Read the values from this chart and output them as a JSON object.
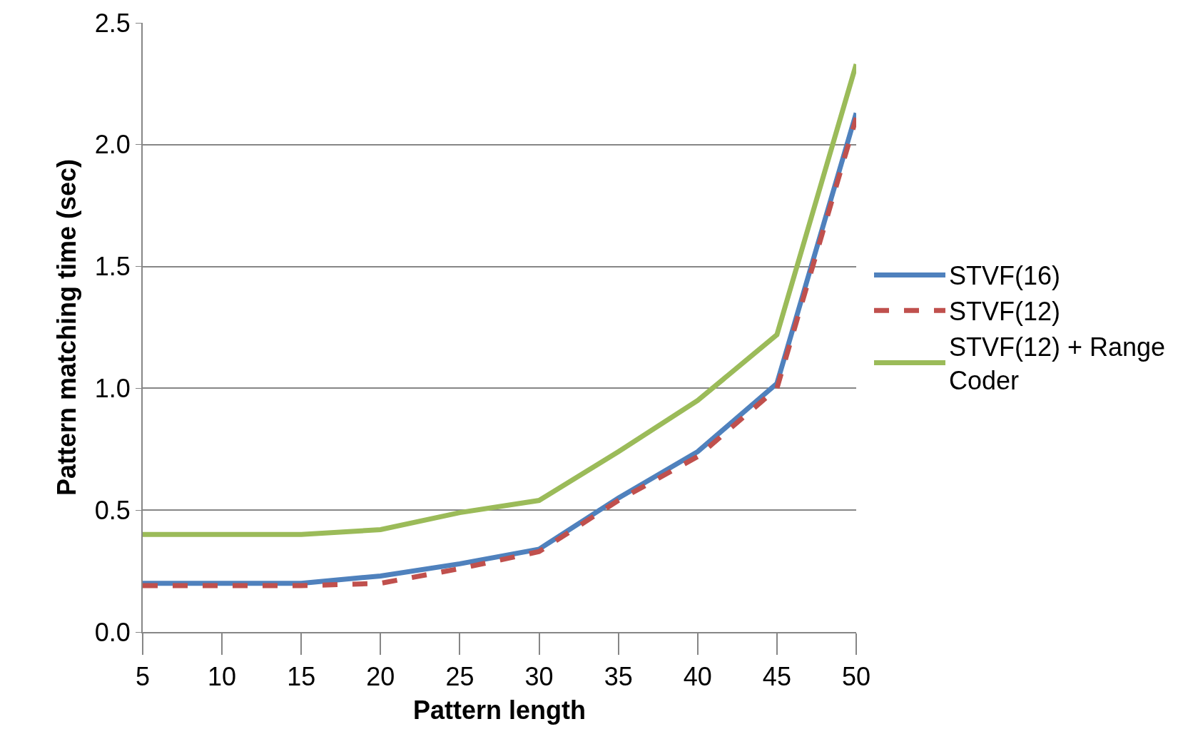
{
  "chart_data": {
    "type": "line",
    "xlabel": "Pattern length",
    "ylabel": "Pattern matching time (sec)",
    "x": [
      5,
      10,
      15,
      20,
      25,
      30,
      35,
      40,
      45,
      50
    ],
    "xlim": [
      5,
      50
    ],
    "xticks": [
      5,
      10,
      15,
      20,
      25,
      30,
      35,
      40,
      45,
      50
    ],
    "ylim": [
      0,
      2.5
    ],
    "yticks": [
      {
        "value": 0,
        "label": "0.0"
      },
      {
        "value": 0.5,
        "label": "0.5"
      },
      {
        "value": 1,
        "label": "1.0"
      },
      {
        "value": 1.5,
        "label": "1.5"
      },
      {
        "value": 2,
        "label": "2.0"
      },
      {
        "value": 2.5,
        "label": "2.5"
      }
    ],
    "grid": "y",
    "legend": "right",
    "marker": "none",
    "series": [
      {
        "name": "STVF(16)",
        "color": "#4f81bd",
        "line_style": "solid",
        "values": [
          0.2,
          0.2,
          0.2,
          0.23,
          0.28,
          0.34,
          0.55,
          0.74,
          1.02,
          2.13
        ]
      },
      {
        "name": "STVF(12)",
        "color": "#c0504d",
        "line_style": "dashed",
        "values": [
          0.19,
          0.19,
          0.19,
          0.2,
          0.26,
          0.33,
          0.54,
          0.72,
          1.0,
          2.11
        ]
      },
      {
        "name": "STVF(12) + Range Coder",
        "color": "#9bbb59",
        "line_style": "solid",
        "values": [
          0.4,
          0.4,
          0.4,
          0.42,
          0.49,
          0.54,
          0.74,
          0.95,
          1.22,
          2.33
        ]
      }
    ]
  }
}
